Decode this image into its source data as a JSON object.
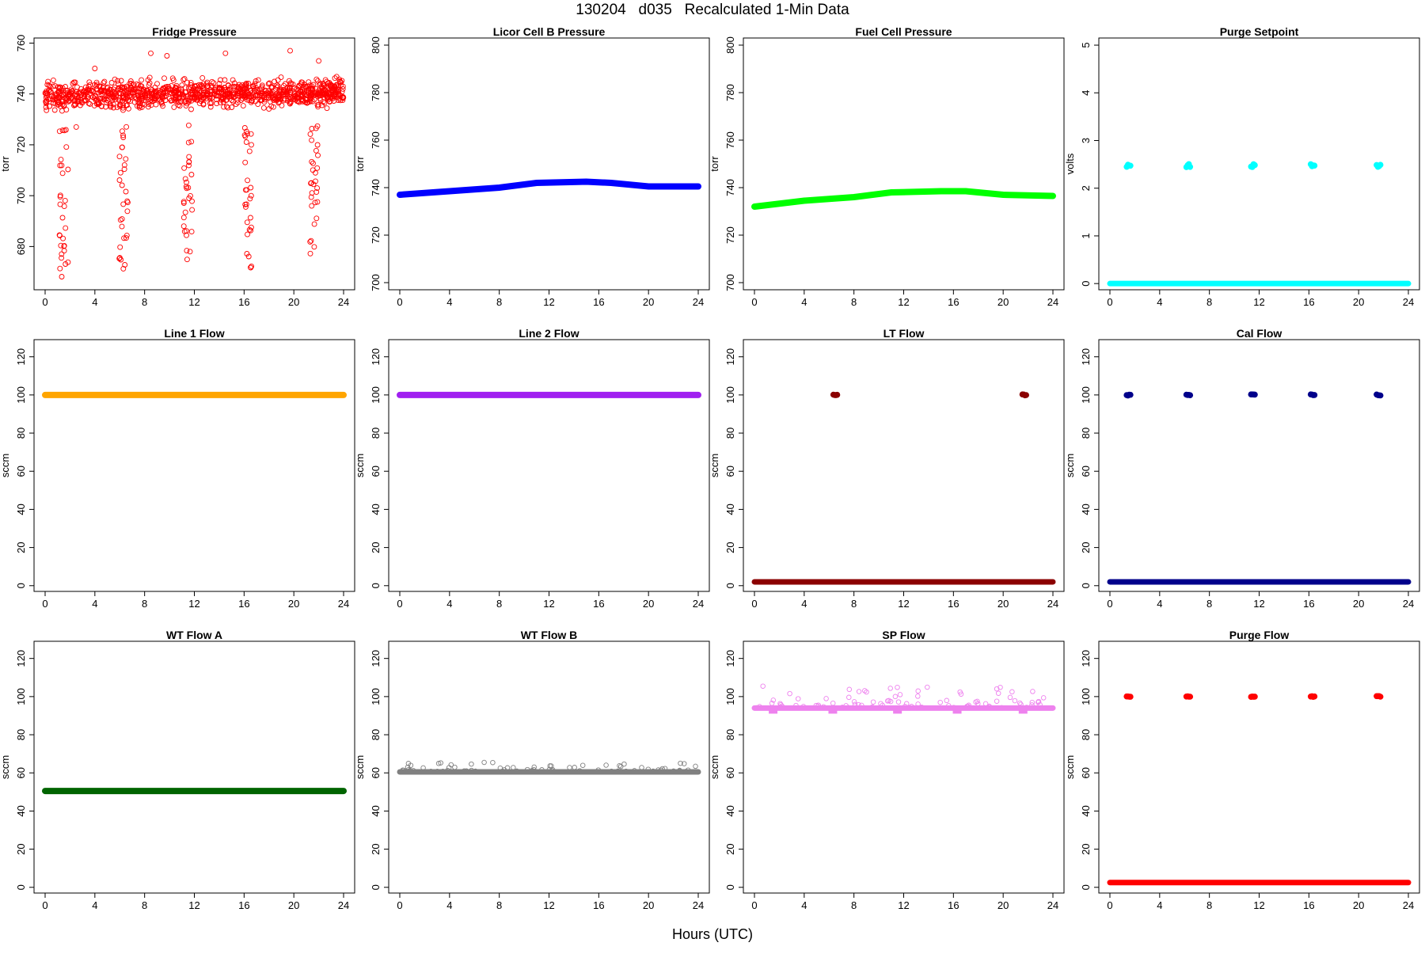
{
  "figure": {
    "title": "130204   d035   Recalculated 1-Min Data",
    "xlabel": "Hours (UTC)"
  },
  "chart_data": [
    {
      "type": "scatter",
      "title": "Fridge Pressure",
      "ylabel": "torr",
      "color": "#ff0000",
      "marker": "open-circle",
      "xlim": [
        0,
        24
      ],
      "ylim": [
        663,
        762
      ],
      "xticks": [
        0,
        4,
        8,
        12,
        16,
        20,
        24
      ],
      "yticks": [
        680,
        700,
        720,
        740,
        760
      ],
      "baseline": [
        [
          0,
          739
        ],
        [
          24,
          741
        ]
      ],
      "noise": 5.5,
      "excursions": [
        {
          "x": 1.5,
          "min": 665
        },
        {
          "x": 6.3,
          "min": 669
        },
        {
          "x": 11.5,
          "min": 674
        },
        {
          "x": 16.3,
          "min": 668
        },
        {
          "x": 21.6,
          "min": 677
        }
      ],
      "outliers": [
        [
          8.5,
          756
        ],
        [
          9.8,
          755
        ],
        [
          14.5,
          756
        ],
        [
          19.7,
          757
        ],
        [
          22,
          753
        ],
        [
          4,
          750
        ],
        [
          2.5,
          727
        ]
      ]
    },
    {
      "type": "line",
      "title": "Licor Cell B Pressure",
      "ylabel": "torr",
      "color": "#0000ff",
      "xlim": [
        0,
        24
      ],
      "ylim": [
        697,
        803
      ],
      "xticks": [
        0,
        4,
        8,
        12,
        16,
        20,
        24
      ],
      "yticks": [
        700,
        720,
        740,
        760,
        780,
        800
      ],
      "points": [
        [
          0,
          737
        ],
        [
          4,
          738.5
        ],
        [
          8,
          740
        ],
        [
          11,
          742
        ],
        [
          15,
          742.5
        ],
        [
          17,
          742
        ],
        [
          20,
          740.5
        ],
        [
          24,
          740.5
        ]
      ]
    },
    {
      "type": "line",
      "title": "Fuel Cell Pressure",
      "ylabel": "torr",
      "color": "#00ff00",
      "xlim": [
        0,
        24
      ],
      "ylim": [
        697,
        803
      ],
      "xticks": [
        0,
        4,
        8,
        12,
        16,
        20,
        24
      ],
      "yticks": [
        700,
        720,
        740,
        760,
        780,
        800
      ],
      "points": [
        [
          0,
          732
        ],
        [
          4,
          734.5
        ],
        [
          8,
          736
        ],
        [
          11,
          738
        ],
        [
          15,
          738.5
        ],
        [
          17,
          738.5
        ],
        [
          20,
          737
        ],
        [
          24,
          736.5
        ]
      ]
    },
    {
      "type": "scatter",
      "title": "Purge Setpoint",
      "ylabel": "volts",
      "color": "#00ffff",
      "xlim": [
        0,
        24
      ],
      "ylim": [
        -0.13,
        5.15
      ],
      "xticks": [
        0,
        4,
        8,
        12,
        16,
        20,
        24
      ],
      "yticks": [
        0,
        1,
        2,
        3,
        4,
        5
      ],
      "baseline_value": 0,
      "spike_value": 2.47,
      "spikes": [
        1.5,
        6.3,
        11.5,
        16.3,
        21.6
      ]
    },
    {
      "type": "line",
      "title": "Line 1 Flow",
      "ylabel": "sccm",
      "color": "#ffa500",
      "xlim": [
        0,
        24
      ],
      "ylim": [
        -3,
        129
      ],
      "xticks": [
        0,
        4,
        8,
        12,
        16,
        20,
        24
      ],
      "yticks": [
        0,
        20,
        40,
        60,
        80,
        100,
        120
      ],
      "points": [
        [
          0,
          100
        ],
        [
          24,
          100
        ]
      ]
    },
    {
      "type": "line",
      "title": "Line 2 Flow",
      "ylabel": "sccm",
      "color": "#a020f0",
      "xlim": [
        0,
        24
      ],
      "ylim": [
        -3,
        129
      ],
      "xticks": [
        0,
        4,
        8,
        12,
        16,
        20,
        24
      ],
      "yticks": [
        0,
        20,
        40,
        60,
        80,
        100,
        120
      ],
      "points": [
        [
          0,
          100
        ],
        [
          24,
          100
        ]
      ]
    },
    {
      "type": "scatter",
      "title": "LT Flow",
      "ylabel": "sccm",
      "color": "#8b0000",
      "xlim": [
        0,
        24
      ],
      "ylim": [
        -3,
        129
      ],
      "xticks": [
        0,
        4,
        8,
        12,
        16,
        20,
        24
      ],
      "yticks": [
        0,
        20,
        40,
        60,
        80,
        100,
        120
      ],
      "baseline_value": 2,
      "spike_value": 100,
      "spikes": [
        6.5,
        21.7
      ]
    },
    {
      "type": "scatter",
      "title": "Cal Flow",
      "ylabel": "sccm",
      "color": "#00008b",
      "xlim": [
        0,
        24
      ],
      "ylim": [
        -3,
        129
      ],
      "xticks": [
        0,
        4,
        8,
        12,
        16,
        20,
        24
      ],
      "yticks": [
        0,
        20,
        40,
        60,
        80,
        100,
        120
      ],
      "baseline_value": 2,
      "spike_value": 100,
      "spikes": [
        1.5,
        6.3,
        11.5,
        16.3,
        21.6
      ]
    },
    {
      "type": "line",
      "title": "WT Flow A",
      "ylabel": "sccm",
      "color": "#006400",
      "xlim": [
        0,
        24
      ],
      "ylim": [
        -3,
        129
      ],
      "xticks": [
        0,
        4,
        8,
        12,
        16,
        20,
        24
      ],
      "yticks": [
        0,
        20,
        40,
        60,
        80,
        100,
        120
      ],
      "points": [
        [
          0,
          50.5
        ],
        [
          24,
          50.5
        ]
      ]
    },
    {
      "type": "scatter",
      "title": "WT Flow B",
      "ylabel": "sccm",
      "color": "#808080",
      "marker": "open-circle",
      "xlim": [
        0,
        24
      ],
      "ylim": [
        -3,
        129
      ],
      "xticks": [
        0,
        4,
        8,
        12,
        16,
        20,
        24
      ],
      "yticks": [
        0,
        20,
        40,
        60,
        80,
        100,
        120
      ],
      "baseline_value": 60.5,
      "noise_up": 6
    },
    {
      "type": "scatter",
      "title": "SP Flow",
      "ylabel": "sccm",
      "color": "#ee82ee",
      "marker": "open-circle",
      "xlim": [
        0,
        24
      ],
      "ylim": [
        -3,
        129
      ],
      "xticks": [
        0,
        4,
        8,
        12,
        16,
        20,
        24
      ],
      "yticks": [
        0,
        20,
        40,
        60,
        80,
        100,
        120
      ],
      "baseline_value": 94,
      "noise_up": 14,
      "dips": [
        1.5,
        6.3,
        11.5,
        16.3,
        21.6
      ],
      "dip_value": 92.5
    },
    {
      "type": "scatter",
      "title": "Purge Flow",
      "ylabel": "sccm",
      "color": "#ff0000",
      "xlim": [
        0,
        24
      ],
      "ylim": [
        -3,
        129
      ],
      "xticks": [
        0,
        4,
        8,
        12,
        16,
        20,
        24
      ],
      "yticks": [
        0,
        20,
        40,
        60,
        80,
        100,
        120
      ],
      "baseline_value": 2.5,
      "spike_value": 100,
      "spikes": [
        1.5,
        6.3,
        11.5,
        16.3,
        21.6
      ]
    }
  ]
}
